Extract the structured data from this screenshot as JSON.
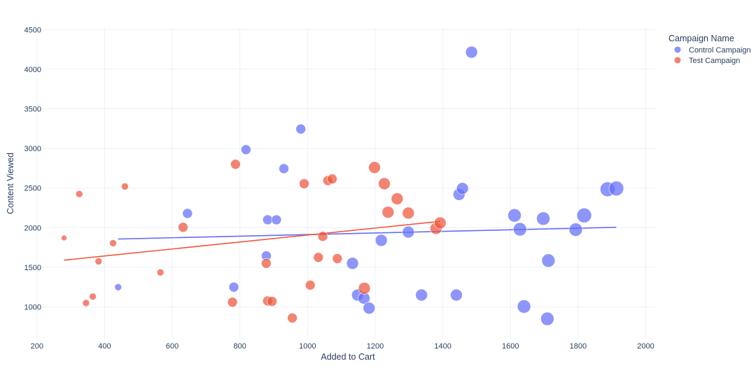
{
  "chart_data": {
    "type": "scatter",
    "title": "",
    "xlabel": "Added to Cart",
    "ylabel": "Content Viewed",
    "xlim": [
      190,
      2030
    ],
    "ylim": [
      590,
      4520
    ],
    "xticks": [
      200,
      400,
      600,
      800,
      1000,
      1200,
      1400,
      1600,
      1800,
      2000
    ],
    "yticks": [
      1000,
      1500,
      2000,
      2500,
      3000,
      3500,
      4000,
      4500
    ],
    "legend": {
      "title": "Campaign Name",
      "placement": "top-right",
      "entries": [
        "Control Campaign",
        "Test Campaign"
      ]
    },
    "series": [
      {
        "name": "Control Campaign",
        "color": "#636efa",
        "trendline": {
          "x": [
            440,
            1913
          ],
          "y": [
            1857,
            2005
          ]
        },
        "points": [
          {
            "x": 440,
            "y": 1250,
            "size": 1
          },
          {
            "x": 645,
            "y": 2180,
            "size": 2
          },
          {
            "x": 782,
            "y": 1250,
            "size": 2
          },
          {
            "x": 818,
            "y": 2985,
            "size": 2
          },
          {
            "x": 878,
            "y": 1645,
            "size": 2
          },
          {
            "x": 882,
            "y": 2100,
            "size": 2
          },
          {
            "x": 908,
            "y": 2100,
            "size": 2
          },
          {
            "x": 930,
            "y": 2745,
            "size": 2
          },
          {
            "x": 980,
            "y": 3245,
            "size": 2
          },
          {
            "x": 1133,
            "y": 1550,
            "size": 3
          },
          {
            "x": 1148,
            "y": 1150,
            "size": 3
          },
          {
            "x": 1167,
            "y": 1110,
            "size": 3
          },
          {
            "x": 1182,
            "y": 985,
            "size": 3
          },
          {
            "x": 1218,
            "y": 1840,
            "size": 3
          },
          {
            "x": 1298,
            "y": 1945,
            "size": 3
          },
          {
            "x": 1337,
            "y": 1150,
            "size": 3
          },
          {
            "x": 1440,
            "y": 1150,
            "size": 3
          },
          {
            "x": 1448,
            "y": 2420,
            "size": 3
          },
          {
            "x": 1458,
            "y": 2495,
            "size": 3
          },
          {
            "x": 1485,
            "y": 4215,
            "size": 3
          },
          {
            "x": 1612,
            "y": 2155,
            "size": 4
          },
          {
            "x": 1628,
            "y": 1980,
            "size": 4
          },
          {
            "x": 1640,
            "y": 1005,
            "size": 4
          },
          {
            "x": 1697,
            "y": 2115,
            "size": 4
          },
          {
            "x": 1709,
            "y": 850,
            "size": 4
          },
          {
            "x": 1712,
            "y": 1585,
            "size": 4
          },
          {
            "x": 1793,
            "y": 1975,
            "size": 4
          },
          {
            "x": 1818,
            "y": 2155,
            "size": 5
          },
          {
            "x": 1887,
            "y": 2485,
            "size": 5
          },
          {
            "x": 1913,
            "y": 2495,
            "size": 5
          }
        ]
      },
      {
        "name": "Test Campaign",
        "color": "#ef553b",
        "trendline": {
          "x": [
            280,
            1392
          ],
          "y": [
            1590,
            2080
          ]
        },
        "points": [
          {
            "x": 280,
            "y": 1870,
            "size": 0
          },
          {
            "x": 325,
            "y": 2425,
            "size": 1
          },
          {
            "x": 345,
            "y": 1050,
            "size": 1
          },
          {
            "x": 365,
            "y": 1130,
            "size": 1
          },
          {
            "x": 382,
            "y": 1575,
            "size": 1
          },
          {
            "x": 425,
            "y": 1805,
            "size": 1
          },
          {
            "x": 460,
            "y": 2520,
            "size": 1
          },
          {
            "x": 565,
            "y": 1435,
            "size": 1
          },
          {
            "x": 632,
            "y": 2005,
            "size": 2
          },
          {
            "x": 778,
            "y": 1060,
            "size": 2
          },
          {
            "x": 787,
            "y": 2800,
            "size": 2
          },
          {
            "x": 878,
            "y": 1550,
            "size": 2
          },
          {
            "x": 882,
            "y": 1075,
            "size": 2
          },
          {
            "x": 895,
            "y": 1070,
            "size": 2
          },
          {
            "x": 955,
            "y": 860,
            "size": 2
          },
          {
            "x": 990,
            "y": 2555,
            "size": 2
          },
          {
            "x": 1008,
            "y": 1275,
            "size": 2
          },
          {
            "x": 1032,
            "y": 1625,
            "size": 2
          },
          {
            "x": 1045,
            "y": 1890,
            "size": 2
          },
          {
            "x": 1060,
            "y": 2595,
            "size": 2
          },
          {
            "x": 1073,
            "y": 2615,
            "size": 2
          },
          {
            "x": 1088,
            "y": 1610,
            "size": 2
          },
          {
            "x": 1168,
            "y": 1235,
            "size": 3
          },
          {
            "x": 1198,
            "y": 2760,
            "size": 3
          },
          {
            "x": 1227,
            "y": 2555,
            "size": 3
          },
          {
            "x": 1238,
            "y": 2195,
            "size": 3
          },
          {
            "x": 1265,
            "y": 2365,
            "size": 3
          },
          {
            "x": 1298,
            "y": 2185,
            "size": 3
          },
          {
            "x": 1380,
            "y": 1990,
            "size": 3
          },
          {
            "x": 1392,
            "y": 2060,
            "size": 3
          }
        ]
      }
    ]
  }
}
